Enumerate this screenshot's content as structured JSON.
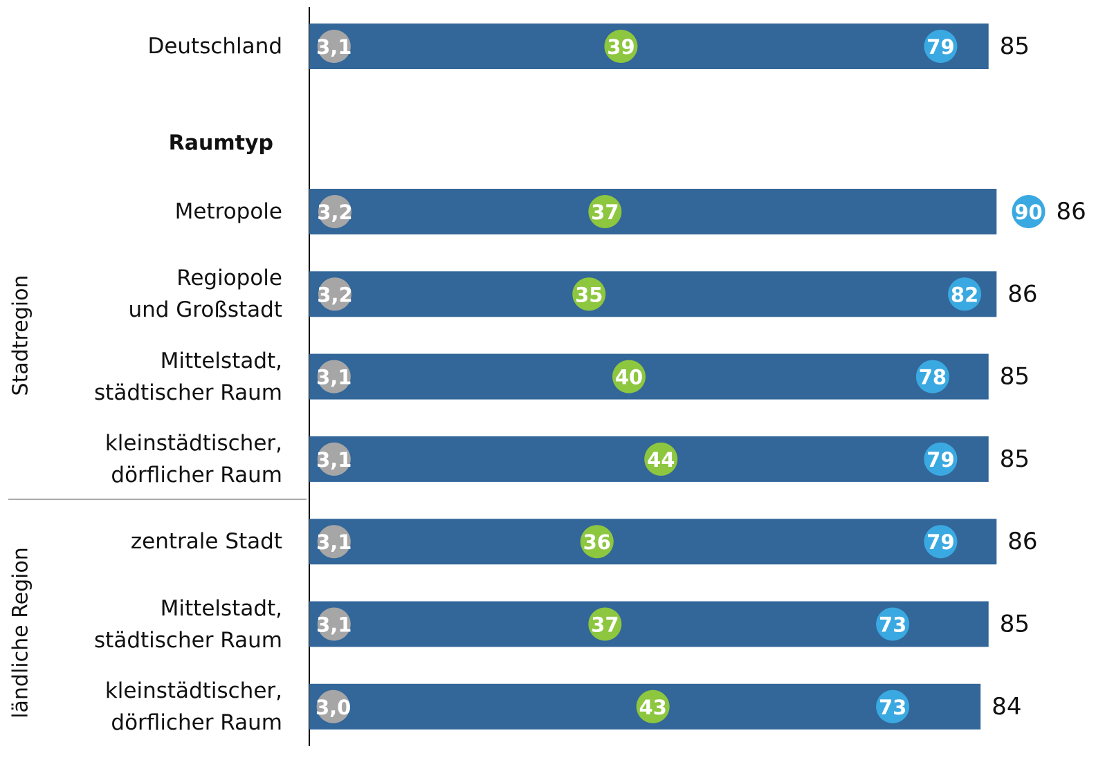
{
  "chart_data": {
    "type": "bar",
    "orientation": "horizontal",
    "heading": "Raumtyp",
    "groups": [
      "Stadtregion",
      "ländliche Region"
    ],
    "categories": [
      "Deutschland",
      "Metropole",
      "Regiopole\nund Großstadt",
      "Mittelstadt,\nstädtischer Raum",
      "kleinstädtischer,\ndörflicher Raum",
      "zentrale Stadt",
      "Mittelstadt,\nstädtischer Raum",
      "kleinstädtischer,\ndörflicher Raum"
    ],
    "values": [
      85,
      86,
      86,
      85,
      85,
      86,
      85,
      84
    ],
    "color": "#336699",
    "xlim": [
      0,
      100
    ],
    "dot_series": [
      {
        "color": "#a6a6a6",
        "values": [
          3.1,
          3.2,
          3.2,
          3.1,
          3.1,
          3.1,
          3.1,
          3.0
        ],
        "value_labels": [
          "3,1",
          "3,2",
          "3,2",
          "3,1",
          "3,1",
          "3,1",
          "3,1",
          "3,0"
        ]
      },
      {
        "color": "#8dc63f",
        "values": [
          39,
          37,
          35,
          40,
          44,
          36,
          37,
          43
        ]
      },
      {
        "color": "#3ba9e1",
        "values": [
          79,
          90,
          82,
          78,
          79,
          79,
          73,
          73
        ]
      }
    ]
  }
}
